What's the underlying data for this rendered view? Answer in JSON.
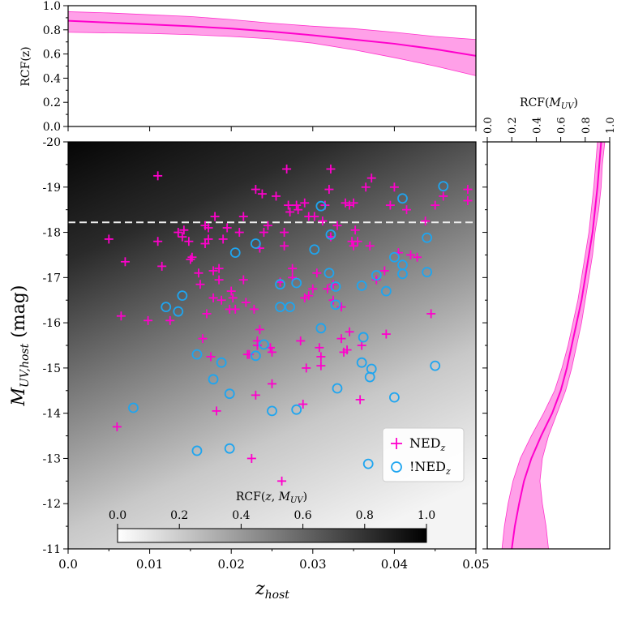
{
  "chart_data": [
    {
      "panel": "top",
      "type": "line",
      "ylabel": "RCF(z)",
      "xlim": [
        0.0,
        0.05
      ],
      "ylim": [
        0.0,
        1.0
      ],
      "yticks": [
        "0.0",
        "0.2",
        "0.4",
        "0.6",
        "0.8",
        "1.0"
      ],
      "x": [
        0.0,
        0.005,
        0.01,
        0.015,
        0.02,
        0.025,
        0.03,
        0.035,
        0.04,
        0.045,
        0.05
      ],
      "median": [
        0.875,
        0.86,
        0.845,
        0.83,
        0.81,
        0.785,
        0.755,
        0.72,
        0.685,
        0.64,
        0.585
      ],
      "lower": [
        0.78,
        0.775,
        0.77,
        0.76,
        0.745,
        0.725,
        0.69,
        0.635,
        0.57,
        0.5,
        0.42
      ],
      "upper": [
        0.95,
        0.94,
        0.925,
        0.91,
        0.885,
        0.855,
        0.83,
        0.81,
        0.78,
        0.745,
        0.72
      ],
      "line_color": "#ff00cc",
      "band_color": "#ff80e0"
    },
    {
      "panel": "main",
      "type": "scatter",
      "xlabel": "z_host",
      "ylabel": "M_UV,host (mag)",
      "xlim": [
        0.0,
        0.05
      ],
      "ylim": [
        -11,
        -20
      ],
      "xticks": [
        "0.0",
        "0.01",
        "0.02",
        "0.03",
        "0.04",
        "0.05"
      ],
      "yticks": [
        "-11",
        "-12",
        "-13",
        "-14",
        "-15",
        "-16",
        "-17",
        "-18",
        "-19",
        "-20"
      ],
      "threshold_line": -18.22,
      "background": "RCF(z, M_UV) grayscale",
      "colorbar": {
        "label": "RCF(z, M_UV)",
        "ticks": [
          "0.0",
          "0.2",
          "0.4",
          "0.6",
          "0.8",
          "1.0"
        ]
      },
      "legend": {
        "position": "lower-right",
        "entries": [
          {
            "label": "NED_z",
            "marker": "plus",
            "color": "#ff00cc"
          },
          {
            "label": "!NED_z",
            "marker": "circle",
            "color": "#1ea5f0"
          }
        ]
      },
      "series": [
        {
          "name": "NED_z",
          "color": "#ff00cc",
          "marker": "plus",
          "points": [
            [
              0.005,
              -17.85
            ],
            [
              0.006,
              -13.7
            ],
            [
              0.0065,
              -16.15
            ],
            [
              0.007,
              -17.35
            ],
            [
              0.0098,
              -16.05
            ],
            [
              0.011,
              -19.25
            ],
            [
              0.011,
              -17.8
            ],
            [
              0.0115,
              -17.25
            ],
            [
              0.0125,
              -16.05
            ],
            [
              0.0135,
              -18.0
            ],
            [
              0.014,
              -17.9
            ],
            [
              0.0142,
              -18.05
            ],
            [
              0.0148,
              -17.8
            ],
            [
              0.015,
              -17.4
            ],
            [
              0.0152,
              -17.45
            ],
            [
              0.016,
              -17.1
            ],
            [
              0.0162,
              -16.85
            ],
            [
              0.0165,
              -15.65
            ],
            [
              0.0168,
              -18.15
            ],
            [
              0.0168,
              -17.75
            ],
            [
              0.017,
              -16.2
            ],
            [
              0.0172,
              -18.1
            ],
            [
              0.0172,
              -17.85
            ],
            [
              0.0175,
              -15.25
            ],
            [
              0.0178,
              -17.15
            ],
            [
              0.0178,
              -16.55
            ],
            [
              0.018,
              -18.35
            ],
            [
              0.0182,
              -14.05
            ],
            [
              0.0185,
              -17.2
            ],
            [
              0.0185,
              -16.95
            ],
            [
              0.0188,
              -16.5
            ],
            [
              0.019,
              -17.85
            ],
            [
              0.0195,
              -18.1
            ],
            [
              0.0198,
              -16.3
            ],
            [
              0.02,
              -16.7
            ],
            [
              0.0202,
              -16.55
            ],
            [
              0.0205,
              -16.3
            ],
            [
              0.021,
              -18.0
            ],
            [
              0.0215,
              -18.35
            ],
            [
              0.0215,
              -16.95
            ],
            [
              0.0218,
              -16.45
            ],
            [
              0.022,
              -15.3
            ],
            [
              0.0222,
              -15.3
            ],
            [
              0.0225,
              -13.0
            ],
            [
              0.0228,
              -16.3
            ],
            [
              0.023,
              -18.95
            ],
            [
              0.023,
              -14.4
            ],
            [
              0.0232,
              -15.6
            ],
            [
              0.0232,
              -15.5
            ],
            [
              0.0235,
              -17.65
            ],
            [
              0.0235,
              -15.85
            ],
            [
              0.0238,
              -18.85
            ],
            [
              0.024,
              -18.0
            ],
            [
              0.0245,
              -18.15
            ],
            [
              0.0248,
              -15.45
            ],
            [
              0.025,
              -15.35
            ],
            [
              0.025,
              -14.65
            ],
            [
              0.0255,
              -18.8
            ],
            [
              0.026,
              -16.9
            ],
            [
              0.0262,
              -12.5
            ],
            [
              0.0265,
              -18.0
            ],
            [
              0.0265,
              -17.7
            ],
            [
              0.0268,
              -19.4
            ],
            [
              0.027,
              -18.6
            ],
            [
              0.0272,
              -18.45
            ],
            [
              0.0275,
              -17.2
            ],
            [
              0.0275,
              -17.0
            ],
            [
              0.028,
              -18.6
            ],
            [
              0.0282,
              -18.5
            ],
            [
              0.0285,
              -15.6
            ],
            [
              0.0288,
              -14.2
            ],
            [
              0.029,
              -18.65
            ],
            [
              0.029,
              -16.55
            ],
            [
              0.0292,
              -15.0
            ],
            [
              0.0295,
              -18.35
            ],
            [
              0.0295,
              -16.6
            ],
            [
              0.03,
              -16.75
            ],
            [
              0.0302,
              -18.35
            ],
            [
              0.0305,
              -17.1
            ],
            [
              0.0308,
              -15.45
            ],
            [
              0.031,
              -15.25
            ],
            [
              0.031,
              -15.05
            ],
            [
              0.0312,
              -18.25
            ],
            [
              0.0315,
              -18.6
            ],
            [
              0.0318,
              -16.75
            ],
            [
              0.032,
              -18.95
            ],
            [
              0.0322,
              -19.4
            ],
            [
              0.0322,
              -17.9
            ],
            [
              0.0325,
              -16.85
            ],
            [
              0.0325,
              -16.5
            ],
            [
              0.033,
              -18.15
            ],
            [
              0.0335,
              -16.35
            ],
            [
              0.0335,
              -15.65
            ],
            [
              0.0338,
              -15.35
            ],
            [
              0.034,
              -18.65
            ],
            [
              0.0342,
              -15.4
            ],
            [
              0.0345,
              -18.6
            ],
            [
              0.0345,
              -15.8
            ],
            [
              0.0348,
              -17.8
            ],
            [
              0.035,
              -18.65
            ],
            [
              0.035,
              -17.7
            ],
            [
              0.0352,
              -18.05
            ],
            [
              0.0355,
              -17.8
            ],
            [
              0.0358,
              -14.3
            ],
            [
              0.036,
              -15.5
            ],
            [
              0.0365,
              -19.0
            ],
            [
              0.037,
              -17.7
            ],
            [
              0.0372,
              -19.2
            ],
            [
              0.0378,
              -16.95
            ],
            [
              0.0388,
              -17.15
            ],
            [
              0.039,
              -15.75
            ],
            [
              0.0395,
              -18.6
            ],
            [
              0.04,
              -19.0
            ],
            [
              0.0405,
              -17.55
            ],
            [
              0.0415,
              -18.5
            ],
            [
              0.042,
              -17.5
            ],
            [
              0.0428,
              -17.45
            ],
            [
              0.0438,
              -18.25
            ],
            [
              0.0445,
              -16.2
            ],
            [
              0.045,
              -18.6
            ],
            [
              0.046,
              -18.8
            ],
            [
              0.049,
              -18.95
            ],
            [
              0.049,
              -18.7
            ]
          ]
        },
        {
          "name": "!NED_z",
          "color": "#1ea5f0",
          "marker": "circle",
          "points": [
            [
              0.008,
              -14.12
            ],
            [
              0.012,
              -16.35
            ],
            [
              0.0135,
              -16.25
            ],
            [
              0.014,
              -16.6
            ],
            [
              0.0158,
              -15.3
            ],
            [
              0.0158,
              -13.17
            ],
            [
              0.0178,
              -14.75
            ],
            [
              0.0188,
              -15.12
            ],
            [
              0.0198,
              -13.22
            ],
            [
              0.0198,
              -14.43
            ],
            [
              0.0205,
              -17.55
            ],
            [
              0.023,
              -17.75
            ],
            [
              0.023,
              -15.27
            ],
            [
              0.024,
              -15.52
            ],
            [
              0.025,
              -14.05
            ],
            [
              0.026,
              -16.85
            ],
            [
              0.026,
              -16.35
            ],
            [
              0.0272,
              -16.35
            ],
            [
              0.028,
              -16.88
            ],
            [
              0.028,
              -14.08
            ],
            [
              0.0302,
              -17.62
            ],
            [
              0.031,
              -18.58
            ],
            [
              0.031,
              -15.88
            ],
            [
              0.032,
              -17.1
            ],
            [
              0.0322,
              -17.95
            ],
            [
              0.0328,
              -16.8
            ],
            [
              0.0328,
              -16.4
            ],
            [
              0.033,
              -14.55
            ],
            [
              0.036,
              -16.82
            ],
            [
              0.036,
              -15.12
            ],
            [
              0.0362,
              -15.68
            ],
            [
              0.0368,
              -12.88
            ],
            [
              0.037,
              -14.8
            ],
            [
              0.0372,
              -14.98
            ],
            [
              0.0378,
              -17.05
            ],
            [
              0.039,
              -16.7
            ],
            [
              0.04,
              -17.45
            ],
            [
              0.04,
              -14.35
            ],
            [
              0.041,
              -18.75
            ],
            [
              0.041,
              -17.28
            ],
            [
              0.041,
              -17.08
            ],
            [
              0.044,
              -17.88
            ],
            [
              0.044,
              -17.12
            ],
            [
              0.045,
              -15.05
            ],
            [
              0.046,
              -19.02
            ]
          ]
        }
      ]
    },
    {
      "panel": "right",
      "type": "line",
      "xlabel": "RCF(M_UV)",
      "xlim": [
        0.0,
        1.0
      ],
      "xticks": [
        "0.0",
        "0.2",
        "0.4",
        "0.6",
        "0.8",
        "1.0"
      ],
      "ylim": [
        -11,
        -20
      ],
      "y": [
        -11.0,
        -11.5,
        -12.0,
        -12.5,
        -13.0,
        -13.5,
        -14.0,
        -14.5,
        -15.0,
        -15.5,
        -16.0,
        -16.5,
        -17.0,
        -17.5,
        -18.0,
        -18.5,
        -19.0,
        -19.5,
        -20.0
      ],
      "median": [
        0.2,
        0.225,
        0.26,
        0.3,
        0.36,
        0.44,
        0.53,
        0.6,
        0.65,
        0.69,
        0.73,
        0.77,
        0.8,
        0.83,
        0.86,
        0.88,
        0.9,
        0.915,
        0.93
      ],
      "lower": [
        0.12,
        0.14,
        0.17,
        0.21,
        0.27,
        0.36,
        0.46,
        0.55,
        0.61,
        0.66,
        0.7,
        0.74,
        0.77,
        0.8,
        0.83,
        0.85,
        0.87,
        0.885,
        0.9
      ],
      "upper": [
        0.5,
        0.48,
        0.45,
        0.43,
        0.45,
        0.5,
        0.57,
        0.64,
        0.69,
        0.73,
        0.77,
        0.8,
        0.83,
        0.86,
        0.88,
        0.91,
        0.93,
        0.94,
        0.96
      ],
      "line_color": "#ff00cc",
      "band_color": "#ff80e0"
    }
  ],
  "labels": {
    "top_ylabel": "RCF(z)",
    "right_top_label_main": "RCF(",
    "right_top_label_sym": "M",
    "right_top_label_sub": "UV",
    "right_top_label_end": ")",
    "main_ylabel_sym": "M",
    "main_ylabel_sub": "UV,host",
    "main_ylabel_unit": " (mag)",
    "main_xlabel_sym": "z",
    "main_xlabel_sub": "host",
    "cbar_label_main": "RCF(",
    "cbar_label_z": "z",
    "cbar_label_sep": ", ",
    "cbar_label_sym": "M",
    "cbar_label_sub": "UV",
    "cbar_label_end": ")",
    "legend_ned": "NED",
    "legend_ned_sub": "z",
    "legend_notned": "!NED",
    "legend_notned_sub": "z"
  }
}
